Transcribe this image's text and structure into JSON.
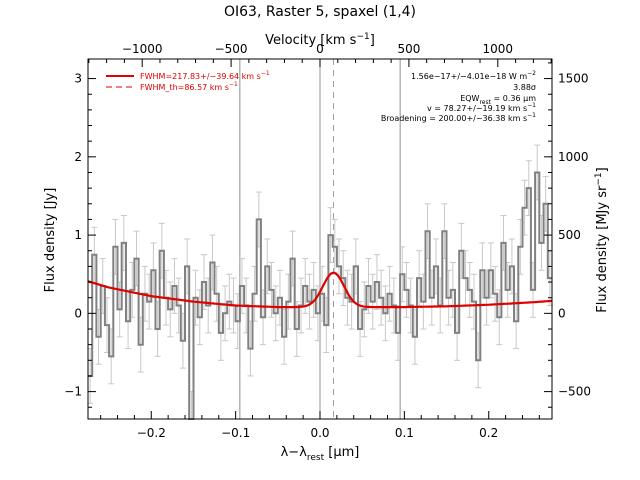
{
  "chart_data": {
    "type": "line",
    "title": "OI63, Raster 5, spaxel (1,4)",
    "xlabel": "λ−λ_rest [μm]",
    "xlabel_main": "λ−λ",
    "xlabel_sub": "rest",
    "xlabel_unit": " [μm]",
    "ylabel": "Flux density [Jy]",
    "top_axis_label": "Velocity [km s^-1]",
    "top_axis_label_main": "Velocity [km s",
    "top_axis_label_sup": "−1",
    "top_axis_label_end": "]",
    "right_axis_label": "Flux density [MJy sr^-1]",
    "right_axis_label_main": "Flux density [MJy sr",
    "right_axis_label_sup": "−1",
    "right_axis_label_end": "]",
    "xlim": [
      -0.275,
      0.275
    ],
    "ylim": [
      -1.35,
      3.25
    ],
    "xticks": [
      -0.2,
      -0.1,
      0.0,
      0.1,
      0.2
    ],
    "xtick_labels": [
      "−0.2",
      "−0.1",
      "0.0",
      "0.1",
      "0.2"
    ],
    "yticks": [
      -1,
      0,
      1,
      2,
      3
    ],
    "ytick_labels": [
      "−1",
      "0",
      "1",
      "2",
      "3"
    ],
    "top_ticks_velocity": [
      -1000,
      -500,
      0,
      500,
      1000
    ],
    "top_tick_labels": [
      "−1000",
      "−500",
      "0",
      "500",
      "1000"
    ],
    "top_axis_rest_wavelength_um": 63.184,
    "right_ticks": [
      -500,
      0,
      500,
      1000,
      1500
    ],
    "right_tick_labels": [
      "−500",
      "0",
      "500",
      "1000",
      "1500"
    ],
    "right_axis_scale": 500,
    "vertical_lines_x": [
      -0.095,
      0.0,
      0.095
    ],
    "dashed_line_x": 0.016,
    "legend": [
      {
        "label": "FWHM=217.83+/−39.64 km s",
        "sup": "−1",
        "style": "solid",
        "color": "#e00000"
      },
      {
        "label": "FWHM_th=86.57 km s",
        "sup": "−1",
        "style": "dashed",
        "color": "#e00000"
      }
    ],
    "annotations": {
      "flux": "1.56e−17+/−4.01e−18 W m",
      "flux_sup": "−2",
      "sigma": "3.88σ",
      "eqw_main": "EQW",
      "eqw_sub": "rest",
      "eqw_val": " = 0.36 μm",
      "velocity": "v = 78.27+/−19.19 km s",
      "velocity_sup": "−1",
      "broadening": "Broadening = 200.00+/−36.38 km s",
      "broadening_sup": "−1"
    },
    "series": [
      {
        "kind": "steps",
        "x": [
          -0.275,
          -0.27,
          -0.265,
          -0.26,
          -0.255,
          -0.25,
          -0.245,
          -0.24,
          -0.235,
          -0.23,
          -0.225,
          -0.22,
          -0.215,
          -0.21,
          -0.205,
          -0.2,
          -0.195,
          -0.19,
          -0.185,
          -0.18,
          -0.175,
          -0.17,
          -0.165,
          -0.16,
          -0.155,
          -0.15,
          -0.145,
          -0.14,
          -0.135,
          -0.13,
          -0.125,
          -0.12,
          -0.115,
          -0.11,
          -0.105,
          -0.1,
          -0.095,
          -0.09,
          -0.085,
          -0.08,
          -0.075,
          -0.07,
          -0.065,
          -0.06,
          -0.055,
          -0.05,
          -0.045,
          -0.04,
          -0.035,
          -0.03,
          -0.025,
          -0.02,
          -0.015,
          -0.01,
          -0.005,
          0.0,
          0.005,
          0.01,
          0.015,
          0.02,
          0.025,
          0.03,
          0.035,
          0.04,
          0.045,
          0.05,
          0.055,
          0.06,
          0.065,
          0.07,
          0.075,
          0.08,
          0.085,
          0.09,
          0.095,
          0.1,
          0.105,
          0.11,
          0.115,
          0.12,
          0.125,
          0.13,
          0.135,
          0.14,
          0.145,
          0.15,
          0.155,
          0.16,
          0.165,
          0.17,
          0.175,
          0.18,
          0.185,
          0.19,
          0.195,
          0.2,
          0.205,
          0.21,
          0.215,
          0.22,
          0.225,
          0.23,
          0.235,
          0.24,
          0.245,
          0.25,
          0.255,
          0.26,
          0.265,
          0.27
        ],
        "y": [
          -0.8,
          0.75,
          -0.3,
          0.35,
          -0.15,
          -0.55,
          0.85,
          0.05,
          0.9,
          -0.1,
          0.3,
          0.7,
          -0.4,
          0.25,
          0.15,
          0.55,
          -0.2,
          0.8,
          0.2,
          0.05,
          0.35,
          0.1,
          -0.35,
          0.6,
          -1.35,
          0.2,
          -0.05,
          0.4,
          0.1,
          0.65,
          0.25,
          -0.25,
          0.0,
          0.15,
          0.1,
          -0.1,
          0.35,
          0.1,
          -0.45,
          0.25,
          1.2,
          -0.05,
          0.6,
          0.3,
          0.0,
          0.2,
          -0.3,
          0.15,
          0.7,
          -0.2,
          0.1,
          0.35,
          0.15,
          0.3,
          0.0,
          0.25,
          -0.15,
          1.0,
          0.85,
          0.6,
          0.45,
          0.2,
          0.15,
          0.6,
          -0.2,
          0.05,
          0.35,
          0.15,
          0.4,
          0.2,
          0.0,
          0.25,
          0.1,
          -0.25,
          0.5,
          0.3,
          0.1,
          -0.3,
          0.45,
          0.15,
          1.05,
          0.2,
          0.6,
          0.1,
          1.05,
          0.2,
          0.3,
          -0.25,
          0.8,
          0.45,
          0.3,
          0.15,
          -0.6,
          0.55,
          0.2,
          0.55,
          0.25,
          -0.05,
          0.9,
          0.3,
          0.6,
          -0.1,
          0.85,
          1.35,
          1.6,
          0.3,
          1.8,
          0.9,
          1.4,
          0.45
        ],
        "err": 0.35,
        "color": "#808080"
      },
      {
        "kind": "continuum",
        "x": [
          -0.275,
          -0.25,
          -0.2,
          -0.15,
          -0.1,
          -0.05,
          0.0,
          0.05,
          0.1,
          0.15,
          0.2,
          0.25,
          0.275
        ],
        "y": [
          0.41,
          0.33,
          0.22,
          0.15,
          0.1,
          0.08,
          0.08,
          0.08,
          0.08,
          0.09,
          0.11,
          0.14,
          0.16
        ],
        "color": "#e00000"
      },
      {
        "kind": "gaussian_total",
        "center": 0.016,
        "sigma": 0.0125,
        "amplitude": 0.44,
        "color": "#e00000"
      },
      {
        "kind": "gaussian_component",
        "center": 0.016,
        "sigma": 0.0125,
        "amplitude": 0.44,
        "color": "#d06000"
      }
    ]
  }
}
